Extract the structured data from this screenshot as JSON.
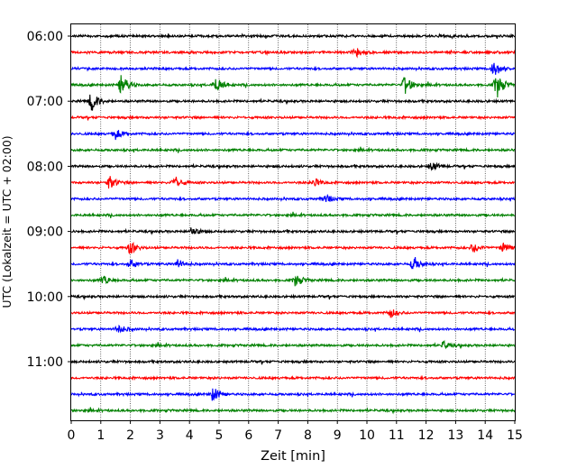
{
  "chart_data": {
    "type": "line",
    "title": "",
    "xlabel": "Zeit  [min]",
    "ylabel": "UTC (Lokalzeit = UTC + 02:00)",
    "xlim": [
      0,
      15
    ],
    "x_ticks": [
      "0",
      "1",
      "2",
      "3",
      "4",
      "5",
      "6",
      "7",
      "8",
      "9",
      "10",
      "11",
      "12",
      "13",
      "14",
      "15"
    ],
    "y_tick_labels": [
      "06:00",
      "07:00",
      "08:00",
      "09:00",
      "10:00",
      "11:00"
    ],
    "y_tick_rows": [
      0,
      4,
      8,
      12,
      16,
      20
    ],
    "grid_x": true,
    "line_start": "06:00",
    "line_minutes": 15,
    "row_count": 24,
    "colors": [
      "#000000",
      "#ff0000",
      "#0000ff",
      "#008000"
    ],
    "events": [
      {
        "row": 1,
        "t": 9.6,
        "a": 0.6
      },
      {
        "row": 2,
        "t": 14.3,
        "a": 0.9
      },
      {
        "row": 3,
        "t": 1.7,
        "a": 1.2
      },
      {
        "row": 3,
        "t": 4.9,
        "a": 0.9
      },
      {
        "row": 3,
        "t": 11.3,
        "a": 1.1
      },
      {
        "row": 3,
        "t": 14.4,
        "a": 1.4
      },
      {
        "row": 4,
        "t": 0.7,
        "a": 1.1
      },
      {
        "row": 6,
        "t": 1.5,
        "a": 0.6
      },
      {
        "row": 8,
        "t": 12.2,
        "a": 0.5
      },
      {
        "row": 9,
        "t": 1.3,
        "a": 0.7
      },
      {
        "row": 9,
        "t": 3.5,
        "a": 0.8
      },
      {
        "row": 9,
        "t": 8.2,
        "a": 0.5
      },
      {
        "row": 10,
        "t": 8.6,
        "a": 0.5
      },
      {
        "row": 12,
        "t": 4.1,
        "a": 0.5
      },
      {
        "row": 13,
        "t": 2.0,
        "a": 0.7
      },
      {
        "row": 13,
        "t": 13.6,
        "a": 0.5
      },
      {
        "row": 13,
        "t": 14.6,
        "a": 0.6
      },
      {
        "row": 14,
        "t": 2.0,
        "a": 0.5
      },
      {
        "row": 14,
        "t": 3.6,
        "a": 0.5
      },
      {
        "row": 14,
        "t": 11.6,
        "a": 0.8
      },
      {
        "row": 15,
        "t": 1.1,
        "a": 0.5
      },
      {
        "row": 15,
        "t": 7.6,
        "a": 0.7
      },
      {
        "row": 17,
        "t": 10.8,
        "a": 0.5
      },
      {
        "row": 18,
        "t": 1.6,
        "a": 0.5
      },
      {
        "row": 19,
        "t": 12.6,
        "a": 0.4
      },
      {
        "row": 22,
        "t": 4.8,
        "a": 0.8
      }
    ]
  }
}
